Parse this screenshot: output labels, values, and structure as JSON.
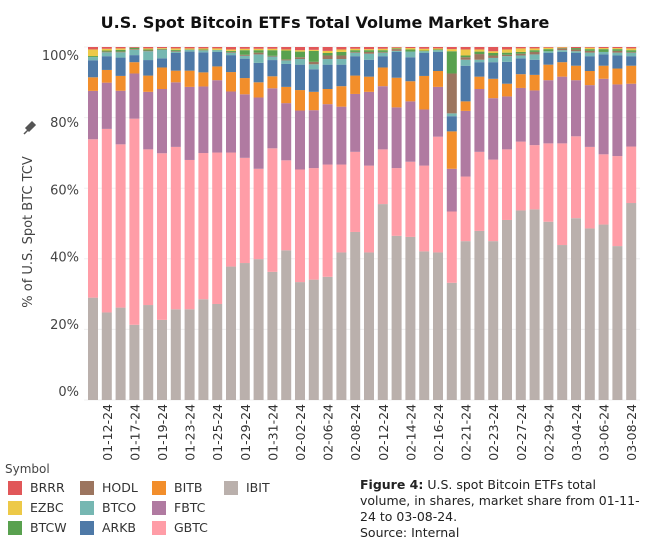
{
  "chart_data": {
    "type": "bar",
    "stacked": true,
    "normalized": true,
    "title": "U.S. Spot Bitcoin ETFs Total Volume Market Share",
    "ylabel": "% of U.S. Spot BTC TCV",
    "ylabel_icon": "pin-icon",
    "ylim": [
      0,
      100
    ],
    "yticks": [
      "0%",
      "20%",
      "40%",
      "60%",
      "80%",
      "100%"
    ],
    "grid": true,
    "legend_title": "Symbol",
    "legend_position": "bottom-left",
    "categories": [
      "",
      "01-12-24",
      "",
      "01-17-24",
      "",
      "01-19-24",
      "",
      "01-23-24",
      "",
      "01-25-24",
      "",
      "01-29-24",
      "",
      "01-31-24",
      "",
      "02-02-24",
      "",
      "02-06-24",
      "",
      "02-08-24",
      "",
      "02-12-24",
      "",
      "02-14-24",
      "",
      "02-16-24",
      "",
      "02-21-24",
      "",
      "02-23-24",
      "",
      "02-27-24",
      "",
      "02-29-24",
      "",
      "03-04-24",
      "",
      "03-06-24",
      "",
      "03-08-24"
    ],
    "series": [
      {
        "name": "IBIT",
        "color": "#bab0ac",
        "values": [
          29.4,
          24.8,
          26.2,
          21.3,
          26.9,
          22.7,
          25.7,
          25.7,
          28.6,
          27.2,
          37.8,
          38.8,
          39.9,
          36.3,
          42.4,
          33.4,
          34.1,
          34.9,
          41.8,
          47.6,
          41.8,
          55.5,
          46.5,
          46.2,
          42.1,
          41.8,
          33.2,
          45.0,
          47.9,
          45.0,
          51.0,
          53.7,
          54.0,
          50.5,
          43.9,
          51.5,
          48.6,
          49.7,
          43.6,
          55.8
        ]
      },
      {
        "name": "GBTC",
        "color": "#ff9da7",
        "values": [
          45.5,
          52.0,
          46.3,
          58.4,
          44.1,
          47.2,
          46.0,
          42.3,
          41.5,
          42.9,
          32.3,
          29.8,
          25.6,
          35.0,
          25.5,
          31.9,
          31.6,
          31.8,
          24.9,
          22.7,
          24.6,
          15.5,
          19.2,
          21.3,
          24.3,
          32.8,
          20.2,
          18.3,
          22.4,
          23.1,
          20.0,
          19.5,
          18.2,
          22.2,
          28.8,
          23.2,
          23.1,
          19.9,
          25.5,
          16.0
        ]
      },
      {
        "name": "FBTC",
        "color": "#b07aa1",
        "values": [
          13.9,
          13.1,
          15.2,
          12.8,
          16.3,
          18.2,
          18.3,
          20.7,
          18.9,
          20.5,
          17.3,
          18.0,
          20.2,
          17.0,
          16.2,
          16.7,
          16.4,
          17.1,
          16.4,
          16.4,
          20.9,
          17.9,
          17.2,
          17.1,
          15.9,
          14.1,
          12.1,
          18.6,
          17.8,
          17.4,
          15.0,
          15.2,
          15.5,
          17.9,
          18.9,
          15.9,
          17.5,
          21.4,
          20.3,
          17.8
        ]
      },
      {
        "name": "BITB",
        "color": "#f28e2b",
        "values": [
          3.9,
          3.6,
          4.2,
          3.2,
          4.6,
          6.1,
          3.3,
          4.6,
          4.0,
          3.9,
          5.5,
          4.6,
          4.3,
          3.4,
          4.6,
          5.8,
          5.2,
          4.3,
          5.8,
          5.2,
          4.3,
          5.3,
          8.4,
          5.7,
          9.5,
          4.5,
          10.6,
          2.7,
          3.5,
          5.5,
          3.6,
          3.9,
          4.4,
          4.4,
          4.1,
          4.1,
          4.0,
          3.7,
          4.5,
          5.1
        ]
      },
      {
        "name": "ARKB",
        "color": "#4e79a7",
        "values": [
          4.9,
          3.9,
          5.2,
          2.0,
          4.4,
          2.6,
          5.0,
          5.4,
          5.7,
          4.1,
          4.8,
          5.5,
          5.5,
          4.6,
          6.5,
          7.2,
          6.4,
          6.9,
          6.1,
          5.5,
          4.8,
          3.2,
          7.3,
          6.8,
          6.5,
          5.4,
          4.3,
          10.1,
          4.1,
          4.7,
          6.2,
          4.5,
          4.3,
          3.3,
          2.9,
          3.6,
          4.2,
          3.2,
          3.7,
          2.7
        ]
      },
      {
        "name": "BTCO",
        "color": "#76b7b2",
        "values": [
          0.9,
          1.1,
          1.5,
          1.5,
          2.5,
          2.4,
          0.4,
          0.5,
          0.5,
          0.5,
          0.7,
          0.8,
          2.4,
          1.0,
          1.0,
          1.6,
          1.4,
          1.6,
          1.6,
          1.0,
          1.7,
          1.0,
          0.3,
          1.6,
          0.5,
          0.5,
          0.8,
          1.7,
          0.7,
          1.2,
          1.6,
          0.8,
          1.5,
          0.5,
          0.5,
          0.5,
          1.0,
          0.7,
          0.8,
          1.0
        ]
      },
      {
        "name": "HODL",
        "color": "#9c755f",
        "values": [
          0,
          0.2,
          0.2,
          0.2,
          0.2,
          0.1,
          0.2,
          0,
          0.1,
          0,
          0.2,
          0.3,
          0.5,
          0.2,
          0.3,
          0.5,
          0.7,
          1.0,
          1.0,
          0.2,
          0.5,
          0.2,
          0.5,
          0,
          0,
          0,
          11.3,
          0.7,
          1.6,
          0.7,
          0.4,
          0.5,
          0.7,
          0,
          0.5,
          0.5,
          0.5,
          0,
          0.5,
          0.2
        ]
      },
      {
        "name": "BTCW",
        "color": "#59a14f",
        "values": [
          0.3,
          0.3,
          0.5,
          0.4,
          0.3,
          0.2,
          0.3,
          0.1,
          0.2,
          0.1,
          0.3,
          1.3,
          0.7,
          1.6,
          2.5,
          1.6,
          3.1,
          0.7,
          1.0,
          0.5,
          0.5,
          0.5,
          0.2,
          0.6,
          0.2,
          0.2,
          6.3,
          0.5,
          0.7,
          0.7,
          0.6,
          0.5,
          0.5,
          0.6,
          0.1,
          0.4,
          0.5,
          0.8,
          0.5,
          0.5
        ]
      },
      {
        "name": "EZBC",
        "color": "#edc948",
        "values": [
          1.9,
          0.5,
          0.4,
          0,
          0.3,
          0.2,
          0.4,
          0.3,
          0.3,
          0.4,
          0.4,
          0.4,
          0.4,
          0.4,
          0.3,
          0.4,
          0.3,
          0.6,
          0.7,
          0.4,
          0.3,
          0.4,
          0.2,
          0.4,
          0.5,
          0.3,
          0.6,
          1.7,
          0.6,
          0.5,
          0.9,
          1.0,
          0.5,
          0.4,
          0.2,
          0,
          0.4,
          0.3,
          0.3,
          0.5
        ]
      },
      {
        "name": "BRRR",
        "color": "#e15759",
        "values": [
          0.7,
          0.5,
          0.4,
          0.2,
          0.4,
          0.3,
          0.4,
          0.4,
          0.4,
          0.4,
          0.7,
          0.5,
          0.5,
          0.5,
          0.7,
          0.9,
          0.8,
          1.1,
          0.7,
          0.5,
          0.6,
          0.5,
          0.2,
          0.3,
          0.5,
          0.4,
          0.6,
          0.7,
          0.7,
          1.2,
          0.7,
          0.4,
          0.4,
          0.2,
          0.1,
          0.3,
          0.2,
          0.3,
          0.3,
          0.4
        ]
      }
    ],
    "legend_order": [
      "BRRR",
      "EZBC",
      "BTCW",
      "HODL",
      "BTCO",
      "ARKB",
      "BITB",
      "FBTC",
      "GBTC",
      "IBIT"
    ]
  },
  "caption": {
    "label": "Figure 4:",
    "text": "U.S. spot Bitcoin ETFs total volume, in shares, market share from 01-11-24 to 03-08-24.",
    "source": "Source: Internal"
  }
}
